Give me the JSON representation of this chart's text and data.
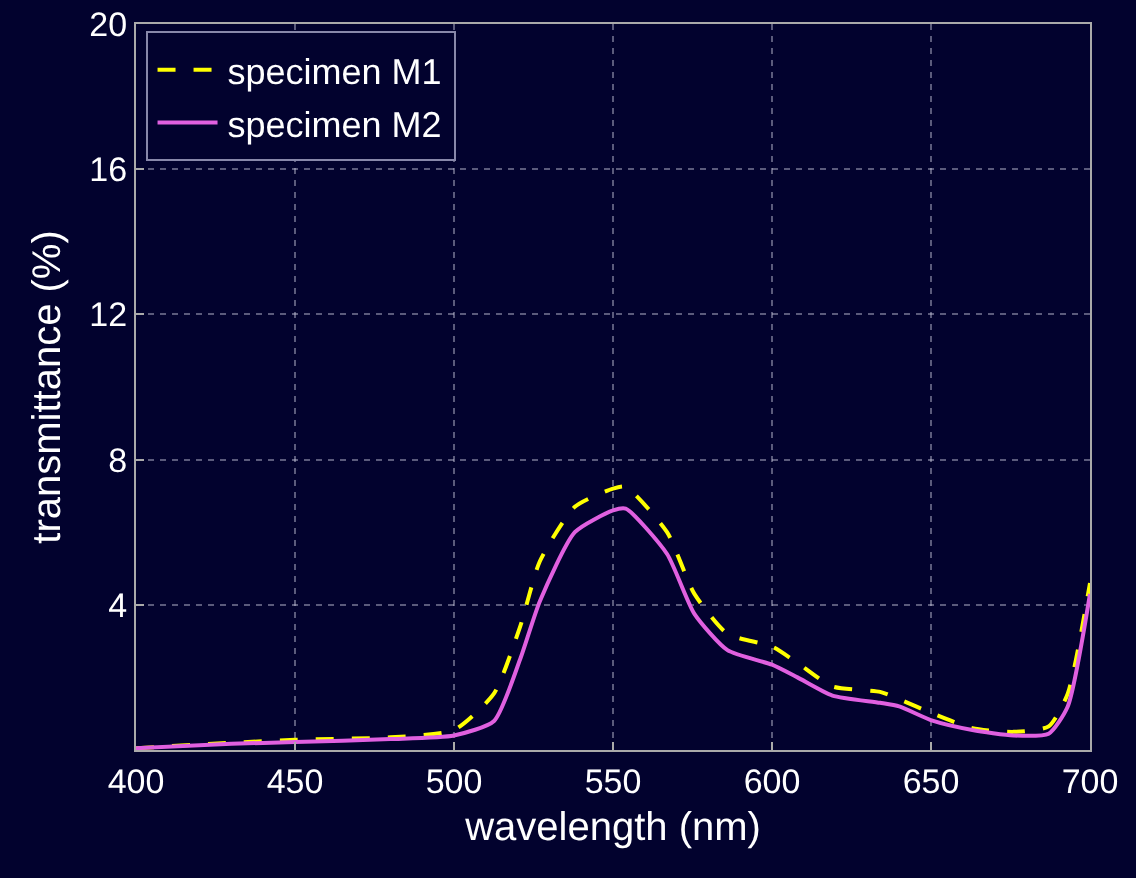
{
  "chart_data": {
    "type": "line",
    "xlabel": "wavelength (nm)",
    "ylabel": "transmittance (%)",
    "xlim": [
      400,
      700
    ],
    "xticks": [
      400,
      450,
      500,
      550,
      600,
      650,
      700
    ],
    "ylim": [
      0,
      20
    ],
    "yticks": [
      {
        "value": 0,
        "label": null
      },
      4,
      8,
      12,
      16,
      20
    ],
    "grid": true,
    "legend": "top left",
    "series": [
      {
        "name": "specimen M1",
        "color": "#ffff00",
        "line_style": "dashed",
        "x": [
          400,
          430,
          450,
          480,
          500,
          512.6,
          520.8,
          527,
          538,
          550,
          554,
          567,
          575.6,
          586,
          600,
          608,
          619,
          634,
          640,
          650.7,
          663,
          676,
          687,
          693,
          700
        ],
        "values": [
          0.05,
          0.2,
          0.28,
          0.35,
          0.55,
          1.56,
          3.4,
          5.2,
          6.7,
          7.2,
          7.25,
          6.0,
          4.3,
          3.2,
          2.85,
          2.4,
          1.75,
          1.6,
          1.4,
          1.0,
          0.6,
          0.5,
          0.65,
          1.55,
          4.6
        ]
      },
      {
        "name": "specimen M2",
        "color": "#e060e0",
        "line_style": "solid",
        "x": [
          400,
          430,
          450,
          480,
          500,
          512.6,
          520.8,
          527,
          538,
          550,
          554,
          567,
          575.6,
          586,
          600,
          608,
          619,
          634,
          640,
          650.7,
          663,
          676,
          687,
          693,
          700
        ],
        "values": [
          0.05,
          0.17,
          0.22,
          0.3,
          0.4,
          0.8,
          2.5,
          4.1,
          6.0,
          6.6,
          6.65,
          5.4,
          3.75,
          2.75,
          2.35,
          2.0,
          1.5,
          1.3,
          1.2,
          0.8,
          0.55,
          0.4,
          0.45,
          1.2,
          4.3
        ]
      }
    ]
  }
}
